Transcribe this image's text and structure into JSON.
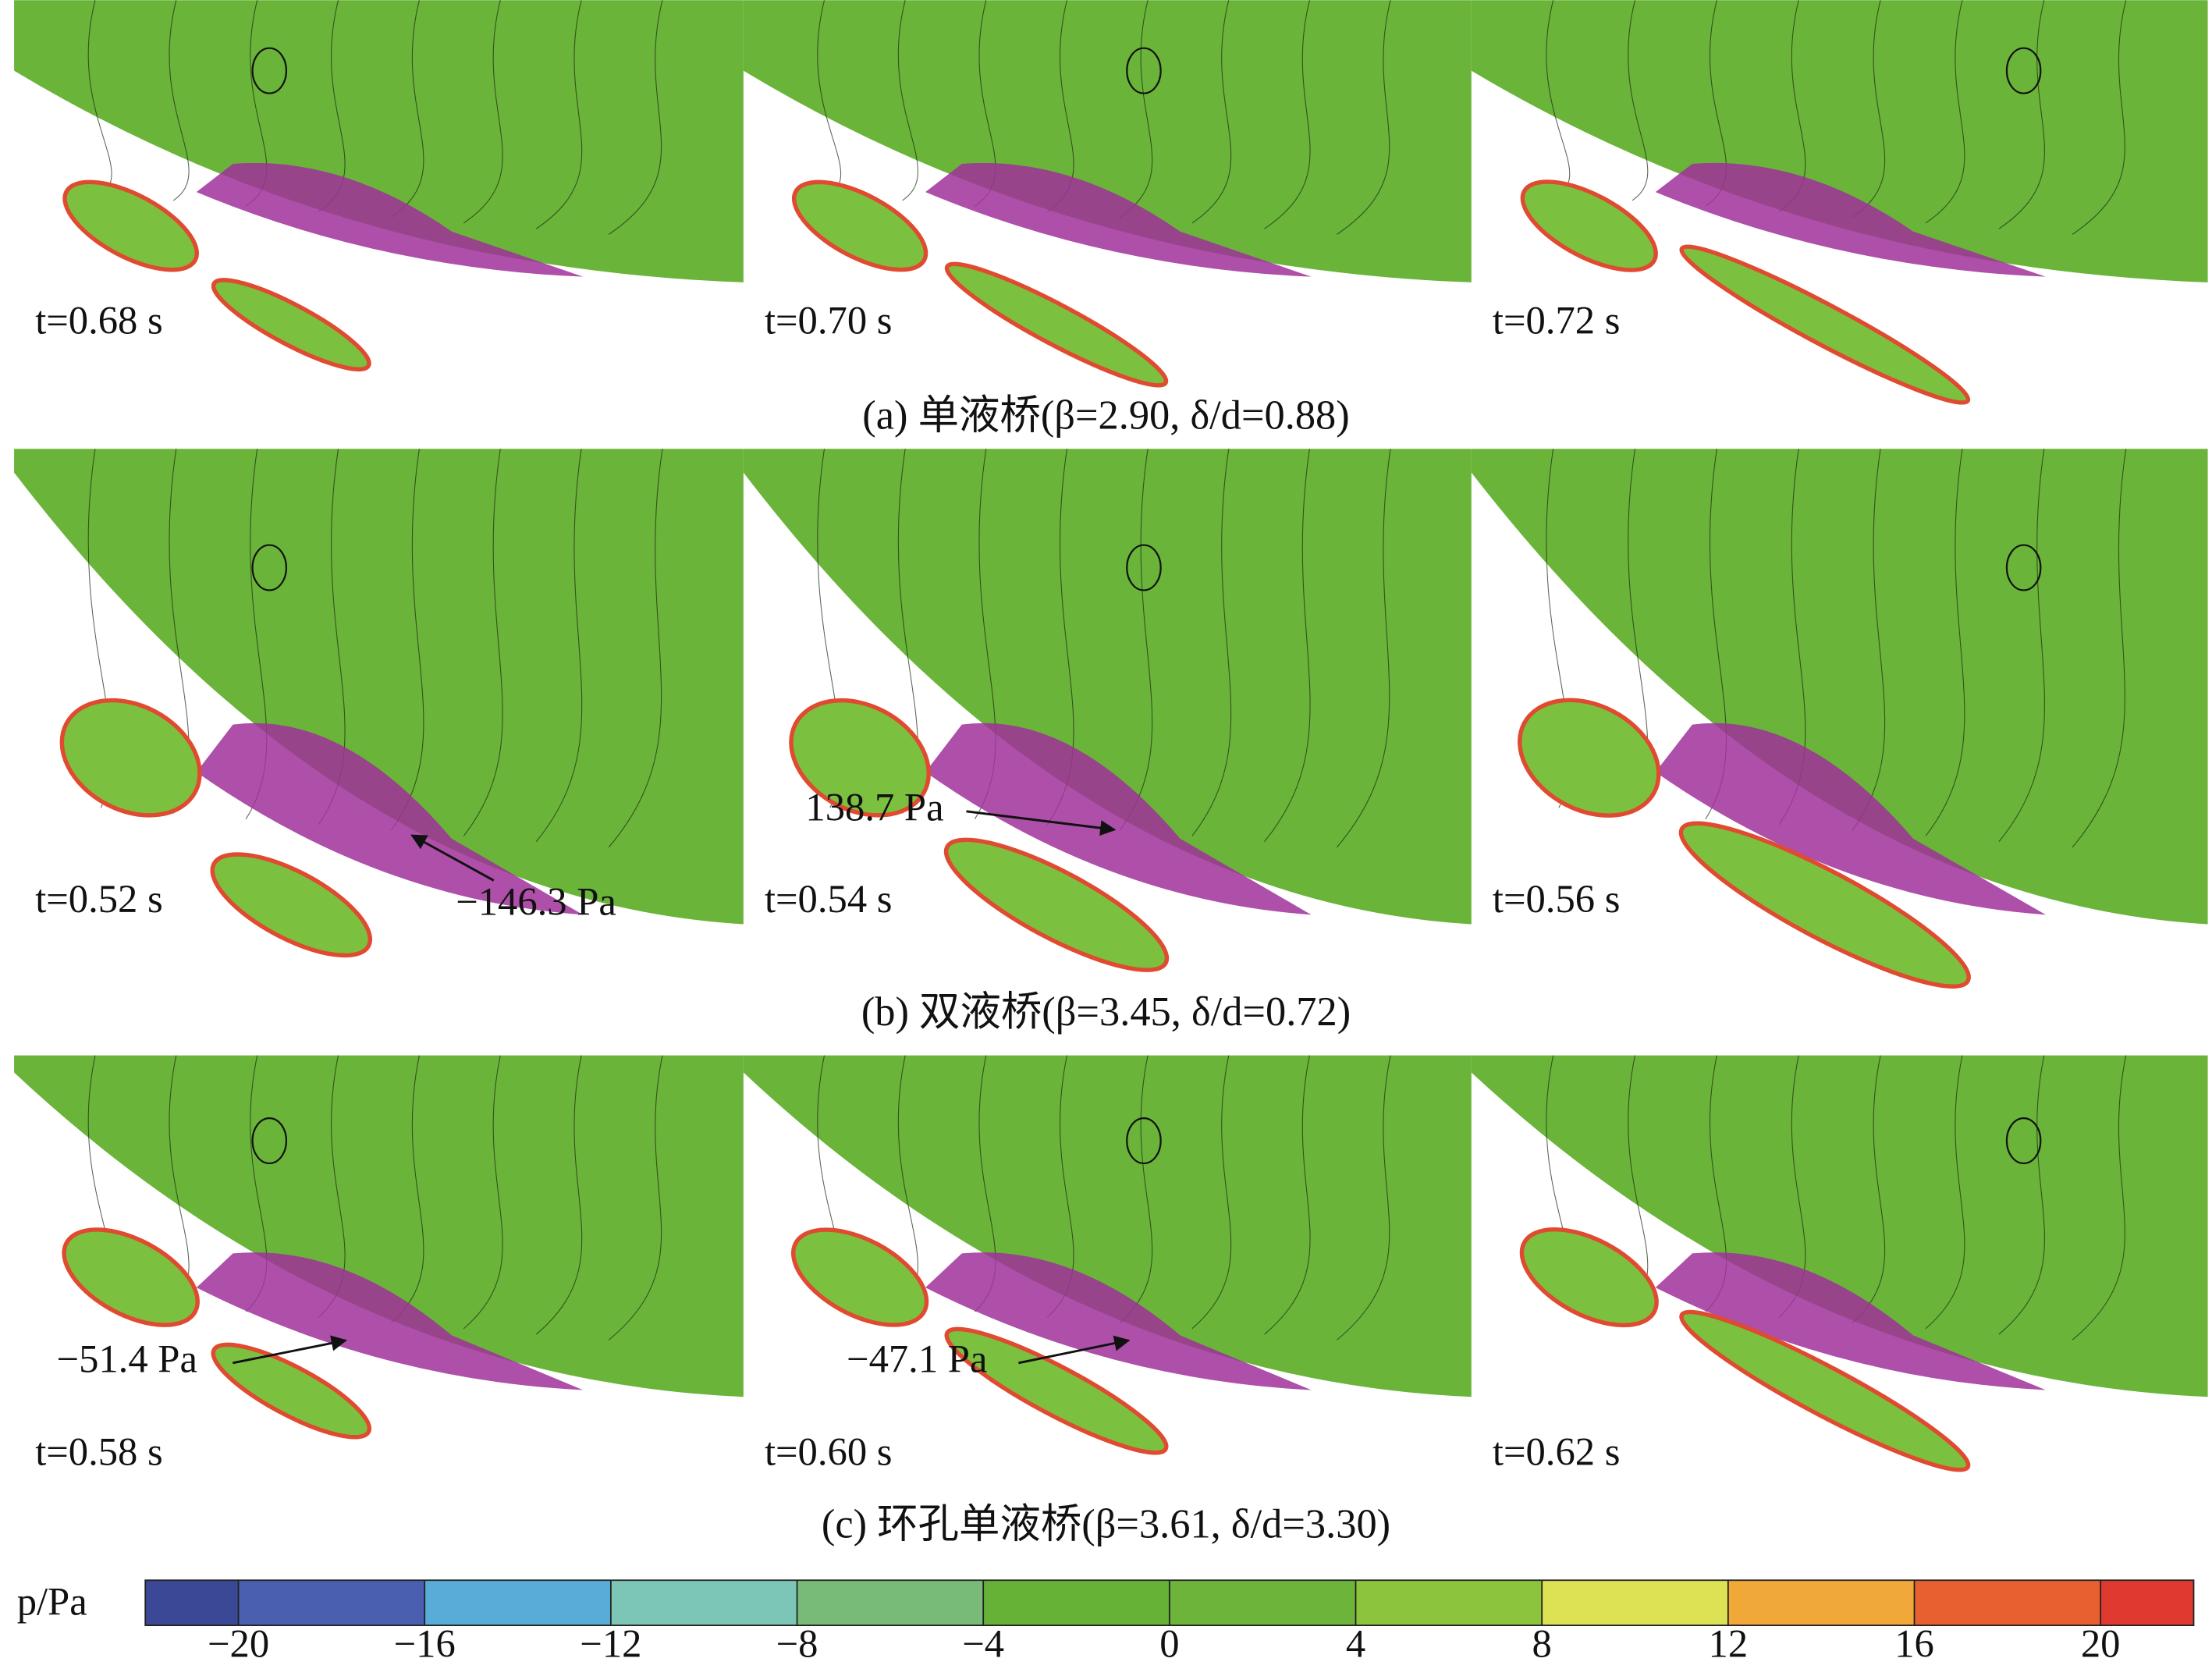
{
  "figure": {
    "rows": [
      {
        "caption": "(a) 单液桥(β=2.90, δ/d=0.88)",
        "frames": [
          {
            "time": "t=0.68 s"
          },
          {
            "time": "t=0.70 s"
          },
          {
            "time": "t=0.72 s"
          }
        ]
      },
      {
        "caption": "(b) 双液桥(β=3.45, δ/d=0.72)",
        "frames": [
          {
            "time": "t=0.52 s",
            "annotation": "−146.3 Pa"
          },
          {
            "time": "t=0.54 s",
            "annotation": "138.7 Pa"
          },
          {
            "time": "t=0.56 s"
          }
        ]
      },
      {
        "caption": "(c) 环孔单液桥(β=3.61, δ/d=3.30)",
        "frames": [
          {
            "time": "t=0.58 s",
            "annotation": "−51.4 Pa"
          },
          {
            "time": "t=0.60 s",
            "annotation": "−47.1 Pa"
          },
          {
            "time": "t=0.62 s"
          }
        ]
      }
    ],
    "colorbar": {
      "label": "p/Pa",
      "lim": [
        -22,
        22
      ],
      "ticks": [
        {
          "value": -20,
          "label": "−20"
        },
        {
          "value": -16,
          "label": "−16"
        },
        {
          "value": -12,
          "label": "−12"
        },
        {
          "value": -8,
          "label": "−8"
        },
        {
          "value": -4,
          "label": "−4"
        },
        0,
        4,
        8,
        12,
        16,
        20
      ],
      "colors": [
        "#3a4896",
        "#4a5fb0",
        "#5aacd8",
        "#7cc6b8",
        "#78bb78",
        "#66b236",
        "#6cb43a",
        "#8cc43c",
        "#dde254",
        "#f0a838",
        "#e86030",
        "#e03a30"
      ]
    }
  }
}
